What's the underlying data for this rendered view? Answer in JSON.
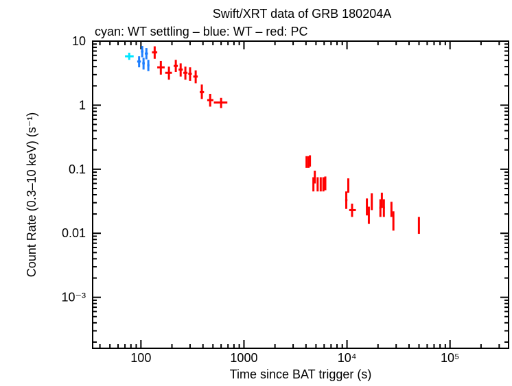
{
  "chart_data": {
    "type": "scatter",
    "title": "Swift/XRT data of GRB 180204A",
    "subtitle": "cyan: WT settling – blue: WT – red: PC",
    "xlabel": "Time since BAT trigger (s)",
    "ylabel": "Count Rate (0.3–10 keV) (s⁻¹)",
    "xscale": "log",
    "yscale": "log",
    "xlim": [
      34,
      370000
    ],
    "ylim": [
      0.00016,
      10
    ],
    "x_ticks": [
      {
        "v": 100,
        "label": "100"
      },
      {
        "v": 1000,
        "label": "1000"
      },
      {
        "v": 10000,
        "label": "10⁴"
      },
      {
        "v": 100000,
        "label": "10⁵"
      }
    ],
    "y_ticks": [
      {
        "v": 10,
        "label": "10"
      },
      {
        "v": 1,
        "label": "1"
      },
      {
        "v": 0.1,
        "label": "0.1"
      },
      {
        "v": 0.01,
        "label": "0.01"
      },
      {
        "v": 0.001,
        "label": "10⁻³"
      }
    ],
    "grid": false,
    "series": [
      {
        "mode": "WT settling",
        "color": "#00e5ff",
        "points": [
          [
            77,
            70,
            85,
            5.8,
            5.1,
            6.6
          ]
        ]
      },
      {
        "mode": "WT",
        "color": "#1e7fff",
        "points": [
          [
            96,
            92,
            100,
            4.8,
            3.9,
            5.8
          ],
          [
            103,
            100,
            106,
            6.9,
            5.6,
            8.4
          ],
          [
            106,
            103,
            109,
            4.5,
            3.6,
            5.5
          ],
          [
            113,
            109,
            117,
            6.4,
            5.2,
            7.8
          ],
          [
            118,
            115,
            121,
            4.2,
            3.4,
            5.1
          ]
        ]
      },
      {
        "mode": "PC",
        "color": "#ff0000",
        "points": [
          [
            136,
            128,
            144,
            6.7,
            5.3,
            8.3
          ],
          [
            156,
            144,
            170,
            3.9,
            3.0,
            4.9
          ],
          [
            187,
            172,
            200,
            3.2,
            2.5,
            4.0
          ],
          [
            218,
            208,
            228,
            4.1,
            3.3,
            5.1
          ],
          [
            243,
            232,
            255,
            3.6,
            2.8,
            4.5
          ],
          [
            270,
            258,
            283,
            3.2,
            2.5,
            4.0
          ],
          [
            300,
            288,
            312,
            3.1,
            2.4,
            3.9
          ],
          [
            340,
            322,
            356,
            2.8,
            2.2,
            3.5
          ],
          [
            390,
            372,
            410,
            1.6,
            1.25,
            2.1
          ],
          [
            470,
            440,
            505,
            1.2,
            0.95,
            1.5
          ],
          [
            600,
            510,
            690,
            1.1,
            0.9,
            1.3
          ],
          [
            4050,
            3990,
            4110,
            0.13,
            0.105,
            0.16
          ],
          [
            4240,
            4180,
            4300,
            0.13,
            0.105,
            0.16
          ],
          [
            4370,
            4310,
            4440,
            0.14,
            0.11,
            0.165
          ],
          [
            4720,
            4660,
            4790,
            0.059,
            0.045,
            0.075
          ],
          [
            4870,
            4800,
            4940,
            0.075,
            0.06,
            0.095
          ],
          [
            5190,
            5100,
            5280,
            0.059,
            0.045,
            0.075
          ],
          [
            5560,
            5480,
            5640,
            0.059,
            0.045,
            0.075
          ],
          [
            5900,
            5810,
            5990,
            0.059,
            0.045,
            0.075
          ],
          [
            6160,
            6070,
            6250,
            0.06,
            0.047,
            0.077
          ],
          [
            9840,
            9600,
            10100,
            0.033,
            0.024,
            0.045
          ],
          [
            10300,
            10100,
            10500,
            0.056,
            0.043,
            0.072
          ],
          [
            11200,
            10500,
            12200,
            0.023,
            0.018,
            0.029
          ],
          [
            15600,
            15300,
            15900,
            0.026,
            0.019,
            0.035
          ],
          [
            16300,
            16000,
            16600,
            0.019,
            0.014,
            0.026
          ],
          [
            17400,
            17100,
            17700,
            0.031,
            0.023,
            0.042
          ],
          [
            21100,
            20600,
            21600,
            0.025,
            0.018,
            0.034
          ],
          [
            21800,
            21400,
            22200,
            0.033,
            0.025,
            0.043
          ],
          [
            22800,
            22300,
            23300,
            0.025,
            0.018,
            0.034
          ],
          [
            27000,
            26500,
            27500,
            0.024,
            0.018,
            0.031
          ],
          [
            28200,
            27700,
            28700,
            0.016,
            0.011,
            0.022
          ],
          [
            49900,
            49400,
            50400,
            0.0135,
            0.0098,
            0.018
          ]
        ]
      }
    ]
  }
}
